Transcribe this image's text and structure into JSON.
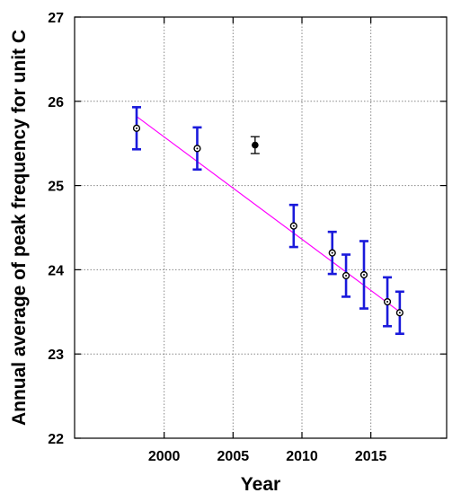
{
  "chart_data": {
    "type": "scatter",
    "xlabel": "Year",
    "ylabel": "Annual average of peak frequency for unit C",
    "xlim": [
      1993.5,
      2020.5
    ],
    "ylim": [
      22,
      27
    ],
    "xticks": [
      2000,
      2005,
      2010,
      2015
    ],
    "yticks": [
      22,
      23,
      24,
      25,
      26,
      27
    ],
    "grid": true,
    "colors": {
      "errorbar_main": "#1a1adb",
      "errorbar_outlier": "#000000",
      "fit_line": "#ff00ff",
      "marker": "#000000",
      "grid": "#888888",
      "axes": "#000000"
    },
    "series": [
      {
        "marker": "open-circle-dot",
        "errorbar_color": "#1a1adb",
        "points": [
          {
            "x": 1998.0,
            "y": 25.68,
            "err": 0.25
          },
          {
            "x": 2002.4,
            "y": 25.44,
            "err": 0.25
          },
          {
            "x": 2009.4,
            "y": 24.52,
            "err": 0.25
          },
          {
            "x": 2012.2,
            "y": 24.2,
            "err": 0.25
          },
          {
            "x": 2013.2,
            "y": 23.93,
            "err": 0.25
          },
          {
            "x": 2014.5,
            "y": 23.94,
            "err": 0.4
          },
          {
            "x": 2016.2,
            "y": 23.62,
            "err": 0.29
          },
          {
            "x": 2017.1,
            "y": 23.49,
            "err": 0.25
          }
        ]
      },
      {
        "marker": "filled-circle",
        "errorbar_color": "#000000",
        "points": [
          {
            "x": 2006.6,
            "y": 25.48,
            "err": 0.1
          }
        ]
      }
    ],
    "fit_line": {
      "x": [
        1998.0,
        2017.1
      ],
      "y": [
        25.82,
        23.5
      ]
    }
  }
}
